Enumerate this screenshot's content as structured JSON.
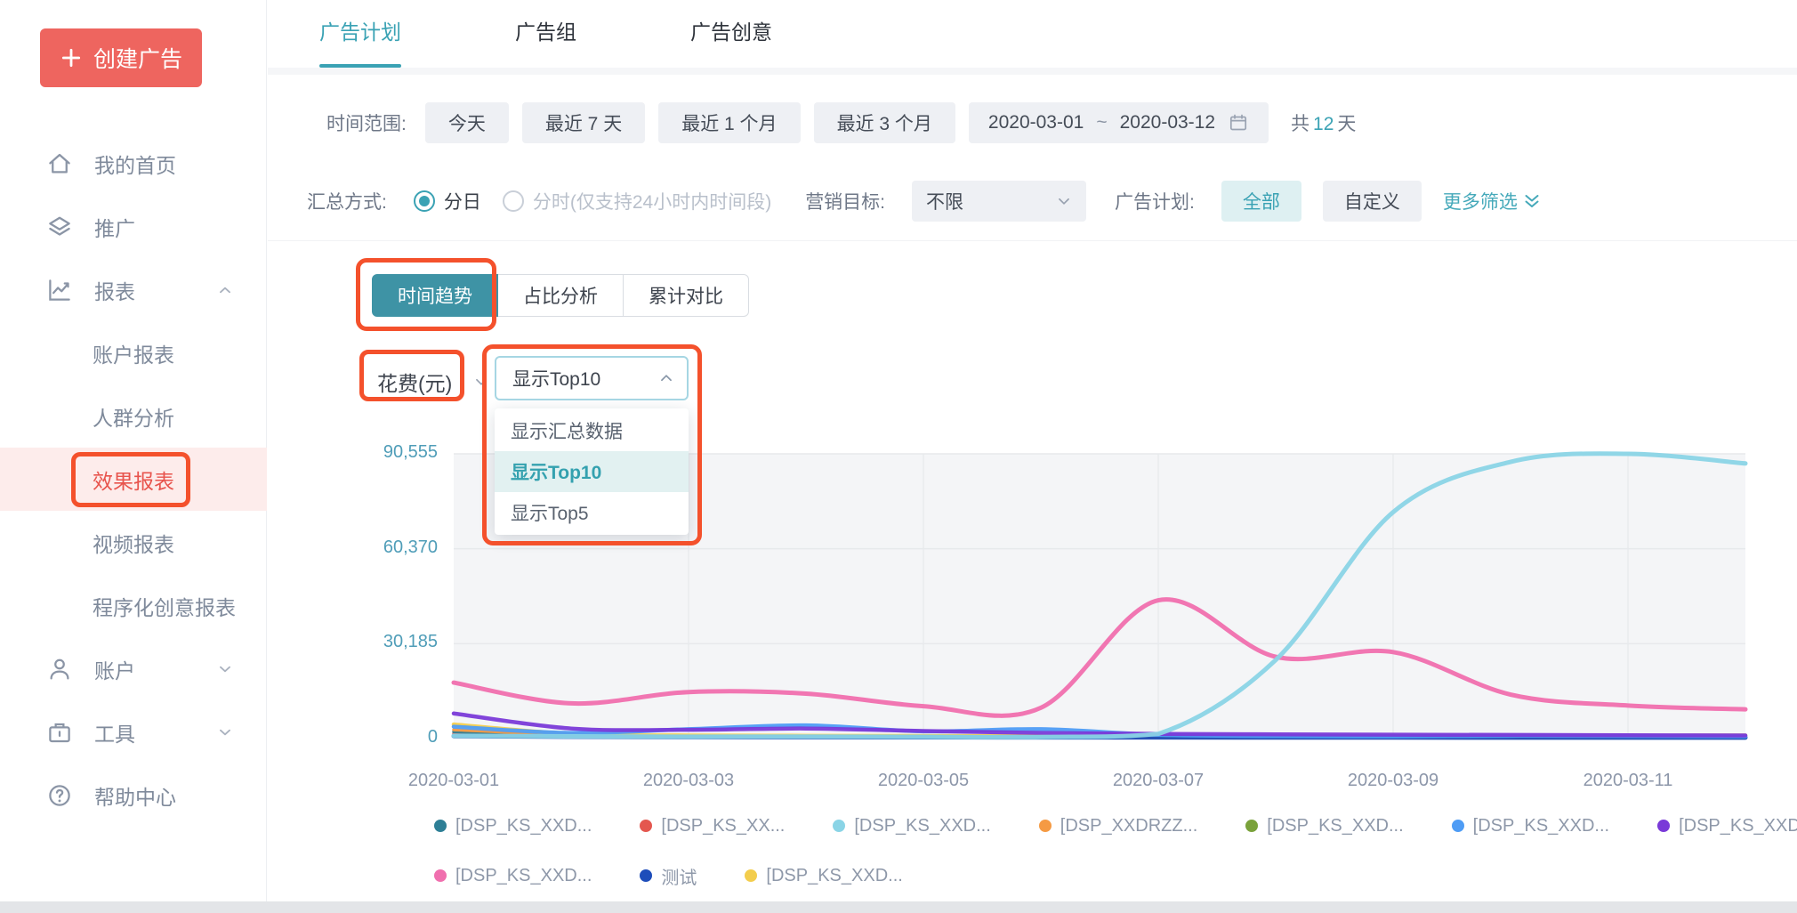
{
  "colors": {
    "brand_red": "#ee655f",
    "accent_teal": "#3aa2b4",
    "annotation_orange": "#f4512c",
    "active_sidebar_bg": "#fdeceb",
    "active_sidebar_text": "#e8544d",
    "chip_bg": "#eef0f4",
    "plot_bg": "#f4f5f7"
  },
  "sidebar": {
    "create_button": "创建广告",
    "items": [
      {
        "id": "home",
        "label": "我的首页",
        "icon": "home",
        "type": "top"
      },
      {
        "id": "promote",
        "label": "推广",
        "icon": "layers",
        "type": "top"
      },
      {
        "id": "reports",
        "label": "报表",
        "icon": "chart",
        "type": "top",
        "chevron": "up"
      },
      {
        "id": "account-report",
        "label": "账户报表",
        "type": "sub"
      },
      {
        "id": "audience-analysis",
        "label": "人群分析",
        "type": "sub"
      },
      {
        "id": "effect-report",
        "label": "效果报表",
        "type": "sub",
        "active": true
      },
      {
        "id": "video-report",
        "label": "视频报表",
        "type": "sub"
      },
      {
        "id": "programmatic-creative-report",
        "label": "程序化创意报表",
        "type": "sub"
      },
      {
        "id": "account",
        "label": "账户",
        "icon": "user",
        "type": "top",
        "chevron": "down"
      },
      {
        "id": "tools",
        "label": "工具",
        "icon": "toolbox",
        "type": "top",
        "chevron": "down"
      },
      {
        "id": "help-center",
        "label": "帮助中心",
        "icon": "help",
        "type": "top"
      }
    ]
  },
  "header": {
    "tabs": [
      {
        "id": "ad-plan",
        "label": "广告计划",
        "active": true
      },
      {
        "id": "ad-group",
        "label": "广告组",
        "active": false
      },
      {
        "id": "ad-creative",
        "label": "广告创意",
        "active": false
      }
    ]
  },
  "filters": {
    "row1": {
      "label": "时间范围:",
      "quick_ranges": [
        "今天",
        "最近 7 天",
        "最近 1 个月",
        "最近 3 个月"
      ],
      "date_start": "2020-03-01",
      "date_separator": "~",
      "date_end": "2020-03-12",
      "total_prefix": "共",
      "total_days": "12",
      "total_suffix": "天"
    },
    "row2": {
      "label": "汇总方式:",
      "radio_daily": "分日",
      "radio_hourly": "分时(仅支持24小时内时间段)",
      "marketing_label": "营销目标:",
      "marketing_value": "不限",
      "campaign_label": "广告计划:",
      "campaign_all": "全部",
      "campaign_custom": "自定义",
      "more_filters": "更多筛选"
    }
  },
  "chart_card": {
    "view_tabs": [
      {
        "id": "time-trend",
        "label": "时间趋势",
        "active": true
      },
      {
        "id": "share-analysis",
        "label": "占比分析",
        "active": false
      },
      {
        "id": "cumulative-compare",
        "label": "累计对比",
        "active": false
      }
    ],
    "metric_label": "花费(元)",
    "top_select": {
      "value": "显示Top10",
      "options": [
        {
          "label": "显示汇总数据",
          "active": false
        },
        {
          "label": "显示Top10",
          "active": true
        },
        {
          "label": "显示Top5",
          "active": false
        }
      ]
    }
  },
  "chart_data": {
    "type": "line",
    "title": "",
    "xlabel": "",
    "ylabel": "花费(元)",
    "grid": true,
    "legend_position": "bottom",
    "ylim": [
      0,
      90555
    ],
    "y_ticks": [
      0,
      30185,
      60370,
      90555
    ],
    "y_tick_labels": [
      "0",
      "30,185",
      "60,370",
      "90,555"
    ],
    "x": [
      "2020-03-01",
      "2020-03-02",
      "2020-03-03",
      "2020-03-04",
      "2020-03-05",
      "2020-03-06",
      "2020-03-07",
      "2020-03-08",
      "2020-03-09",
      "2020-03-10",
      "2020-03-11",
      "2020-03-12"
    ],
    "x_tick_indices": [
      0,
      2,
      4,
      6,
      8,
      10
    ],
    "x_tick_labels": [
      "2020-03-01",
      "2020-03-03",
      "2020-03-05",
      "2020-03-07",
      "2020-03-09",
      "2020-03-11"
    ],
    "draw_order": [
      4,
      1,
      0,
      3,
      9,
      8,
      5,
      6,
      7,
      2
    ],
    "series": [
      {
        "name": "[DSP_KS_XXD...",
        "color": "#2e7f96",
        "width": 3.5,
        "values": [
          2200,
          1000,
          650,
          550,
          500,
          450,
          420,
          380,
          350,
          330,
          300,
          280
        ]
      },
      {
        "name": "[DSP_KS_XX...",
        "color": "#e4574f",
        "width": 3.5,
        "values": [
          1600,
          900,
          600,
          520,
          460,
          420,
          380,
          340,
          310,
          290,
          270,
          260
        ]
      },
      {
        "name": "[DSP_KS_XXD...",
        "color": "#8ad4e6",
        "width": 5,
        "values": [
          900,
          700,
          600,
          650,
          550,
          500,
          1500,
          25000,
          72000,
          88000,
          90555,
          87500
        ]
      },
      {
        "name": "[DSP_XXDRZZ...",
        "color": "#f59a43",
        "width": 3.5,
        "values": [
          2800,
          1200,
          750,
          650,
          560,
          500,
          460,
          430,
          400,
          380,
          360,
          340
        ]
      },
      {
        "name": "[DSP_KS_XXD...",
        "color": "#7aa23b",
        "width": 3,
        "values": [
          600,
          450,
          380,
          340,
          320,
          300,
          280,
          260,
          250,
          240,
          230,
          220
        ]
      },
      {
        "name": "[DSP_KS_XXD...",
        "color": "#4e9cf5",
        "width": 4.5,
        "values": [
          3800,
          1800,
          3000,
          4200,
          2300,
          3000,
          1200,
          800,
          700,
          900,
          800,
          700
        ]
      },
      {
        "name": "[DSP_KS_XXD...",
        "color": "#7a3ad8",
        "width": 4.5,
        "values": [
          8000,
          3200,
          2800,
          3200,
          2400,
          1800,
          1500,
          1350,
          1250,
          1150,
          1050,
          1000
        ]
      },
      {
        "name": "[DSP_KS_XXD...",
        "color": "#f06fae",
        "width": 5,
        "values": [
          17800,
          11200,
          14800,
          14300,
          10300,
          9800,
          44000,
          26000,
          27500,
          14000,
          10500,
          9300
        ]
      },
      {
        "name": "测试",
        "color": "#1d4dba",
        "width": 5,
        "values": [
          800,
          600,
          500,
          450,
          420,
          400,
          380,
          360,
          340,
          330,
          320,
          310
        ]
      },
      {
        "name": "[DSP_KS_XXD...",
        "color": "#f3cd4d",
        "width": 4.5,
        "values": [
          4500,
          1500,
          1000,
          900,
          820,
          760,
          720,
          690,
          720,
          790,
          890,
          1000
        ]
      }
    ]
  }
}
